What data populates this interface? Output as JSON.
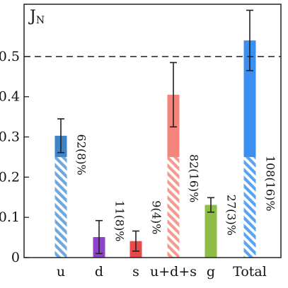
{
  "chart_data": {
    "type": "bar",
    "title_main": "J",
    "title_sub": "N",
    "categories": [
      "u",
      "d",
      "s",
      "u+d+s",
      "g",
      "Total"
    ],
    "values": [
      0.303,
      0.051,
      0.041,
      0.405,
      0.131,
      0.54
    ],
    "errors": [
      0.042,
      0.041,
      0.025,
      0.08,
      0.018,
      0.075
    ],
    "hatched_portion": [
      0.25,
      0,
      0,
      0.25,
      0,
      0.25
    ],
    "labels": [
      "62(8)%",
      "11(8)%",
      "9(4)%",
      "82(16)%",
      "27(3)%",
      "108(16)%"
    ],
    "colors": [
      "#3d85c6",
      "#8e44c8",
      "#e84a4a",
      "#f5857a",
      "#8fbd45",
      "#3b8ff0"
    ],
    "hatch_colors": [
      "#6fa8dc",
      "",
      "",
      "#f39a91",
      "",
      "#5aa3f0"
    ],
    "yticks": [
      "0",
      "0.1",
      "0.2",
      "0.3",
      "0.4",
      "0.5"
    ],
    "ylim": [
      0,
      0.63
    ],
    "reference_line": 0.5,
    "grid": false
  }
}
